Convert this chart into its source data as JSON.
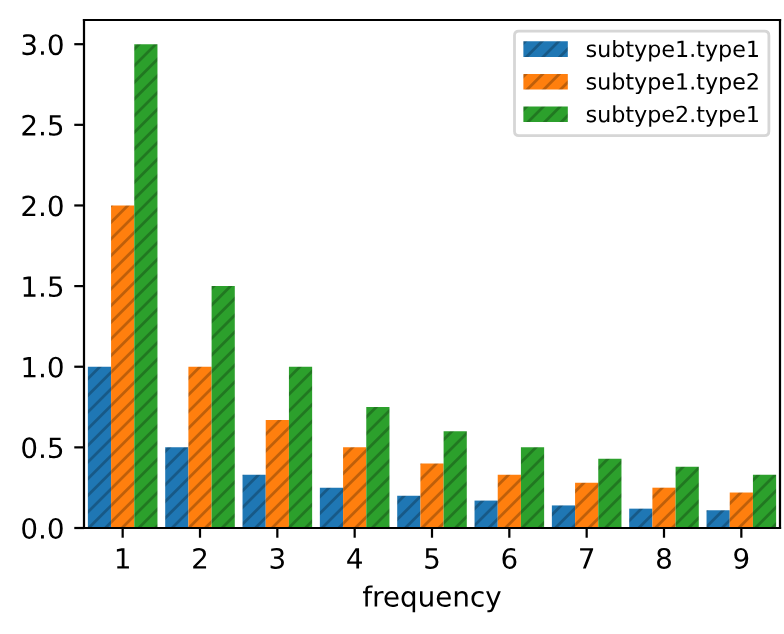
{
  "chart_data": {
    "type": "bar",
    "xlabel": "frequency",
    "categories": [
      "1",
      "2",
      "3",
      "4",
      "5",
      "6",
      "7",
      "8",
      "9"
    ],
    "series": [
      {
        "name": "subtype1.type1",
        "color": "#1f77b4",
        "values": [
          1.0,
          0.5,
          0.33,
          0.25,
          0.2,
          0.17,
          0.14,
          0.12,
          0.11
        ]
      },
      {
        "name": "subtype1.type2",
        "color": "#ff7f0e",
        "values": [
          2.0,
          1.0,
          0.67,
          0.5,
          0.4,
          0.33,
          0.28,
          0.25,
          0.22
        ]
      },
      {
        "name": "subtype2.type1",
        "color": "#2ca02c",
        "values": [
          3.0,
          1.5,
          1.0,
          0.75,
          0.6,
          0.5,
          0.43,
          0.38,
          0.33
        ]
      }
    ],
    "ylim": [
      0,
      3.15
    ],
    "yticks": [
      {
        "value": 0,
        "label": "0.0"
      },
      0.5,
      {
        "value": 1,
        "label": "1.0"
      },
      1.5,
      {
        "value": 2,
        "label": "2.0"
      },
      2.5,
      {
        "value": 3,
        "label": "3.0"
      }
    ],
    "grid": false,
    "legend": "top right"
  }
}
